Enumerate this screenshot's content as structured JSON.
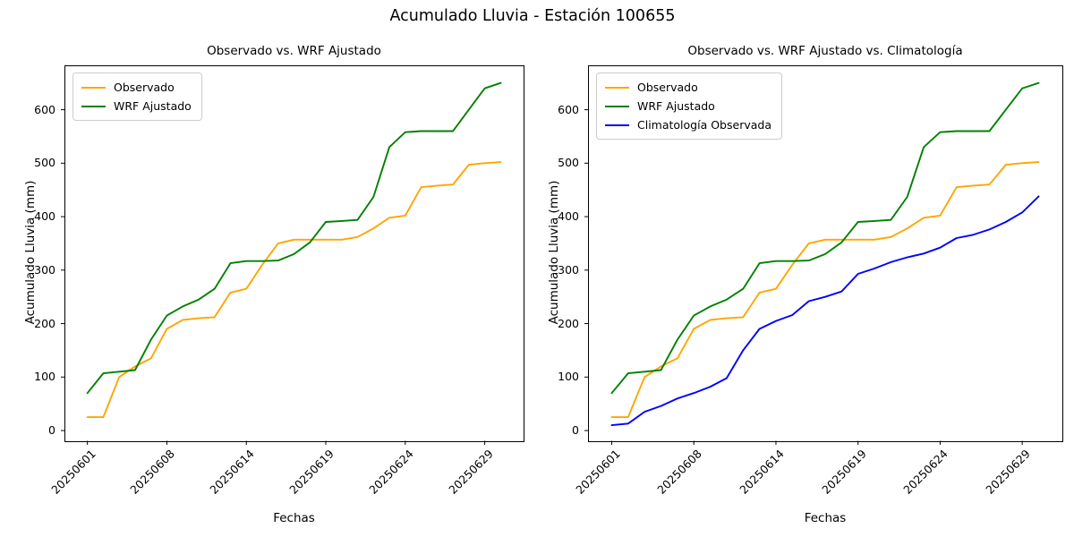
{
  "figure": {
    "suptitle": "Acumulado Lluvia - Estación 100655",
    "background_color": "#ffffff",
    "text_color": "#000000",
    "spine_color": "#000000"
  },
  "chart_data": [
    {
      "type": "line",
      "title": "Observado vs. WRF Ajustado",
      "xlabel": "Fechas",
      "ylabel": "Acumulado Lluvia (mm)",
      "n_points": 27,
      "x_tick_positions": [
        0,
        5,
        10,
        15,
        20,
        25
      ],
      "x_tick_labels": [
        "20250601",
        "20250608",
        "20250614",
        "20250619",
        "20250624",
        "20250629"
      ],
      "x_tick_rotation": 45,
      "yticks": [
        0,
        100,
        200,
        300,
        400,
        500,
        600
      ],
      "ylim": [
        -20,
        683
      ],
      "grid": false,
      "legend_position": "upper-left",
      "series": [
        {
          "name": "Observado",
          "color": "#FFA500",
          "values": [
            25,
            25,
            100,
            120,
            135,
            190,
            207,
            210,
            212,
            258,
            265,
            310,
            350,
            357,
            357,
            357,
            357,
            362,
            378,
            398,
            402,
            455,
            458,
            460,
            497,
            500,
            502
          ]
        },
        {
          "name": "WRF Ajustado",
          "color": "#008000",
          "values": [
            70,
            107,
            110,
            113,
            170,
            215,
            232,
            245,
            265,
            313,
            317,
            317,
            318,
            330,
            352,
            390,
            392,
            394,
            437,
            530,
            558,
            560,
            560,
            560,
            600,
            640,
            650
          ]
        }
      ]
    },
    {
      "type": "line",
      "title": "Observado vs. WRF Ajustado vs. Climatología",
      "xlabel": "Fechas",
      "ylabel": "Acumulado Lluvia (mm)",
      "n_points": 27,
      "x_tick_positions": [
        0,
        5,
        10,
        15,
        20,
        25
      ],
      "x_tick_labels": [
        "20250601",
        "20250608",
        "20250614",
        "20250619",
        "20250624",
        "20250629"
      ],
      "x_tick_rotation": 45,
      "yticks": [
        0,
        100,
        200,
        300,
        400,
        500,
        600
      ],
      "ylim": [
        -20,
        683
      ],
      "grid": false,
      "legend_position": "upper-left",
      "series": [
        {
          "name": "Observado",
          "color": "#FFA500",
          "values": [
            25,
            25,
            100,
            120,
            135,
            190,
            207,
            210,
            212,
            258,
            265,
            310,
            350,
            357,
            357,
            357,
            357,
            362,
            378,
            398,
            402,
            455,
            458,
            460,
            497,
            500,
            502
          ]
        },
        {
          "name": "WRF Ajustado",
          "color": "#008000",
          "values": [
            70,
            107,
            110,
            113,
            170,
            215,
            232,
            245,
            265,
            313,
            317,
            317,
            318,
            330,
            352,
            390,
            392,
            394,
            437,
            530,
            558,
            560,
            560,
            560,
            600,
            640,
            650
          ]
        },
        {
          "name": "Climatología Observada",
          "color": "#0000FF",
          "values": [
            10,
            13,
            35,
            46,
            60,
            70,
            82,
            98,
            150,
            190,
            205,
            216,
            242,
            250,
            260,
            293,
            303,
            315,
            324,
            331,
            342,
            360,
            366,
            376,
            390,
            408,
            438
          ]
        }
      ]
    }
  ]
}
